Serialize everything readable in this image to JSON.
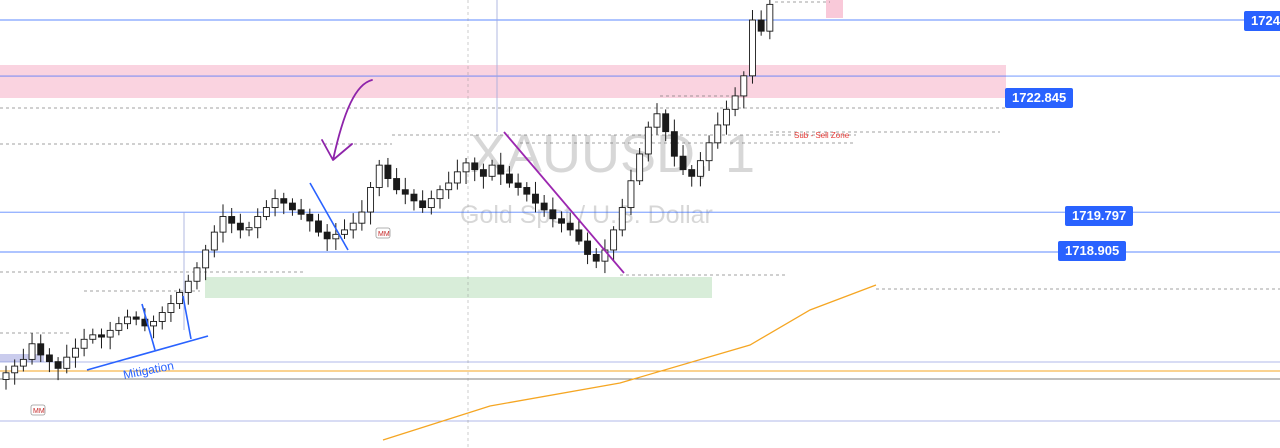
{
  "chart_data": {
    "type": "candlestick",
    "watermark": {
      "symbol": "XAUUSD, 1",
      "description": "Gold Spot / U.S. Dollar"
    },
    "price_tags": [
      {
        "label": "1724",
        "price": 1724.1
      },
      {
        "label": "1722.845",
        "price": 1722.845
      },
      {
        "label": "1719.797",
        "price": 1719.797
      },
      {
        "label": "1718.905",
        "price": 1718.905
      }
    ],
    "annotations": {
      "mitigation": "Mitigation",
      "sell_zone": "Sub - Sell Zone",
      "mm": "MM"
    },
    "zones": [
      {
        "name": "sell-zone",
        "color": "#f8bbd0"
      },
      {
        "name": "demand-zone",
        "color": "#c8e6c9"
      }
    ],
    "moving_average_color": "#f5a623",
    "colors": {
      "up": "#1a1a1a",
      "down": "#1a1a1a",
      "line": "#2962ff",
      "trend_purple": "#9c27b0",
      "arrow_purple": "#8e24aa"
    },
    "series": [
      {
        "name": "close",
        "values": [
          1716.2,
          1716.35,
          1716.5,
          1716.85,
          1716.6,
          1716.45,
          1716.3,
          1716.55,
          1716.75,
          1716.95,
          1717.05,
          1717.0,
          1717.15,
          1717.3,
          1717.45,
          1717.4,
          1717.25,
          1717.35,
          1717.55,
          1717.75,
          1718.0,
          1718.25,
          1718.55,
          1718.95,
          1719.35,
          1719.7,
          1719.55,
          1719.4,
          1719.45,
          1719.7,
          1719.9,
          1720.1,
          1720.0,
          1719.85,
          1719.75,
          1719.6,
          1719.35,
          1719.2,
          1719.3,
          1719.4,
          1719.55,
          1719.8,
          1720.35,
          1720.85,
          1720.55,
          1720.3,
          1720.2,
          1720.05,
          1719.9,
          1720.1,
          1720.3,
          1720.45,
          1720.7,
          1720.9,
          1720.75,
          1720.6,
          1720.85,
          1720.65,
          1720.45,
          1720.35,
          1720.2,
          1720.0,
          1719.85,
          1719.65,
          1719.55,
          1719.4,
          1719.15,
          1718.85,
          1718.7,
          1718.95,
          1719.4,
          1719.9,
          1720.5,
          1721.1,
          1721.7,
          1722.0,
          1721.6,
          1721.05,
          1720.75,
          1720.6,
          1720.95,
          1721.35,
          1721.75,
          1722.1,
          1722.4,
          1722.85,
          1724.1,
          1723.85,
          1724.45
        ]
      }
    ]
  }
}
